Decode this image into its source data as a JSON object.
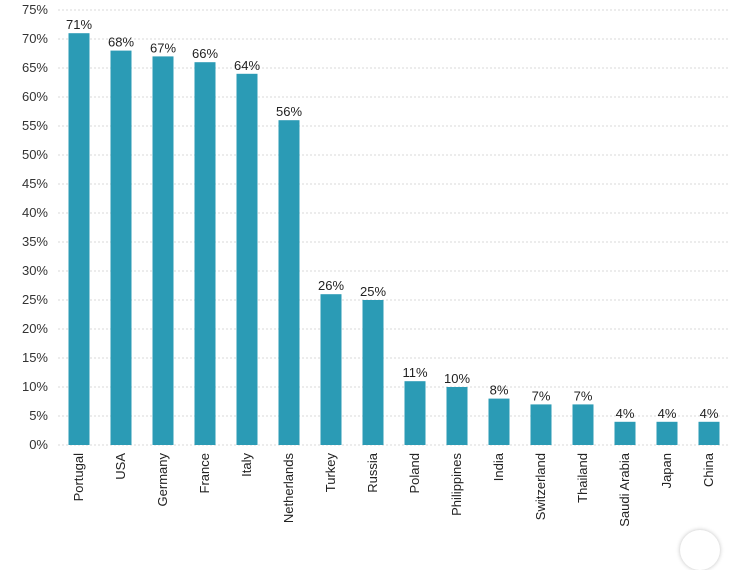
{
  "chart_data": {
    "type": "bar",
    "categories": [
      "Portugal",
      "USA",
      "Germany",
      "France",
      "Italy",
      "Netherlands",
      "Turkey",
      "Russia",
      "Poland",
      "Philippines",
      "India",
      "Switzerland",
      "Thailand",
      "Saudi Arabia",
      "Japan",
      "China"
    ],
    "values": [
      71,
      68,
      67,
      66,
      64,
      56,
      26,
      25,
      11,
      10,
      8,
      7,
      7,
      4,
      4,
      4
    ],
    "data_labels": [
      "71%",
      "68%",
      "67%",
      "66%",
      "64%",
      "56%",
      "26%",
      "25%",
      "11%",
      "10%",
      "8%",
      "7%",
      "7%",
      "4%",
      "4%",
      "4%"
    ],
    "yticks": [
      "0%",
      "5%",
      "10%",
      "15%",
      "20%",
      "25%",
      "30%",
      "35%",
      "40%",
      "45%",
      "50%",
      "55%",
      "60%",
      "65%",
      "70%",
      "75%"
    ],
    "ylim": [
      0,
      75
    ],
    "grid": true,
    "bar_color": "#2b9bb5"
  }
}
